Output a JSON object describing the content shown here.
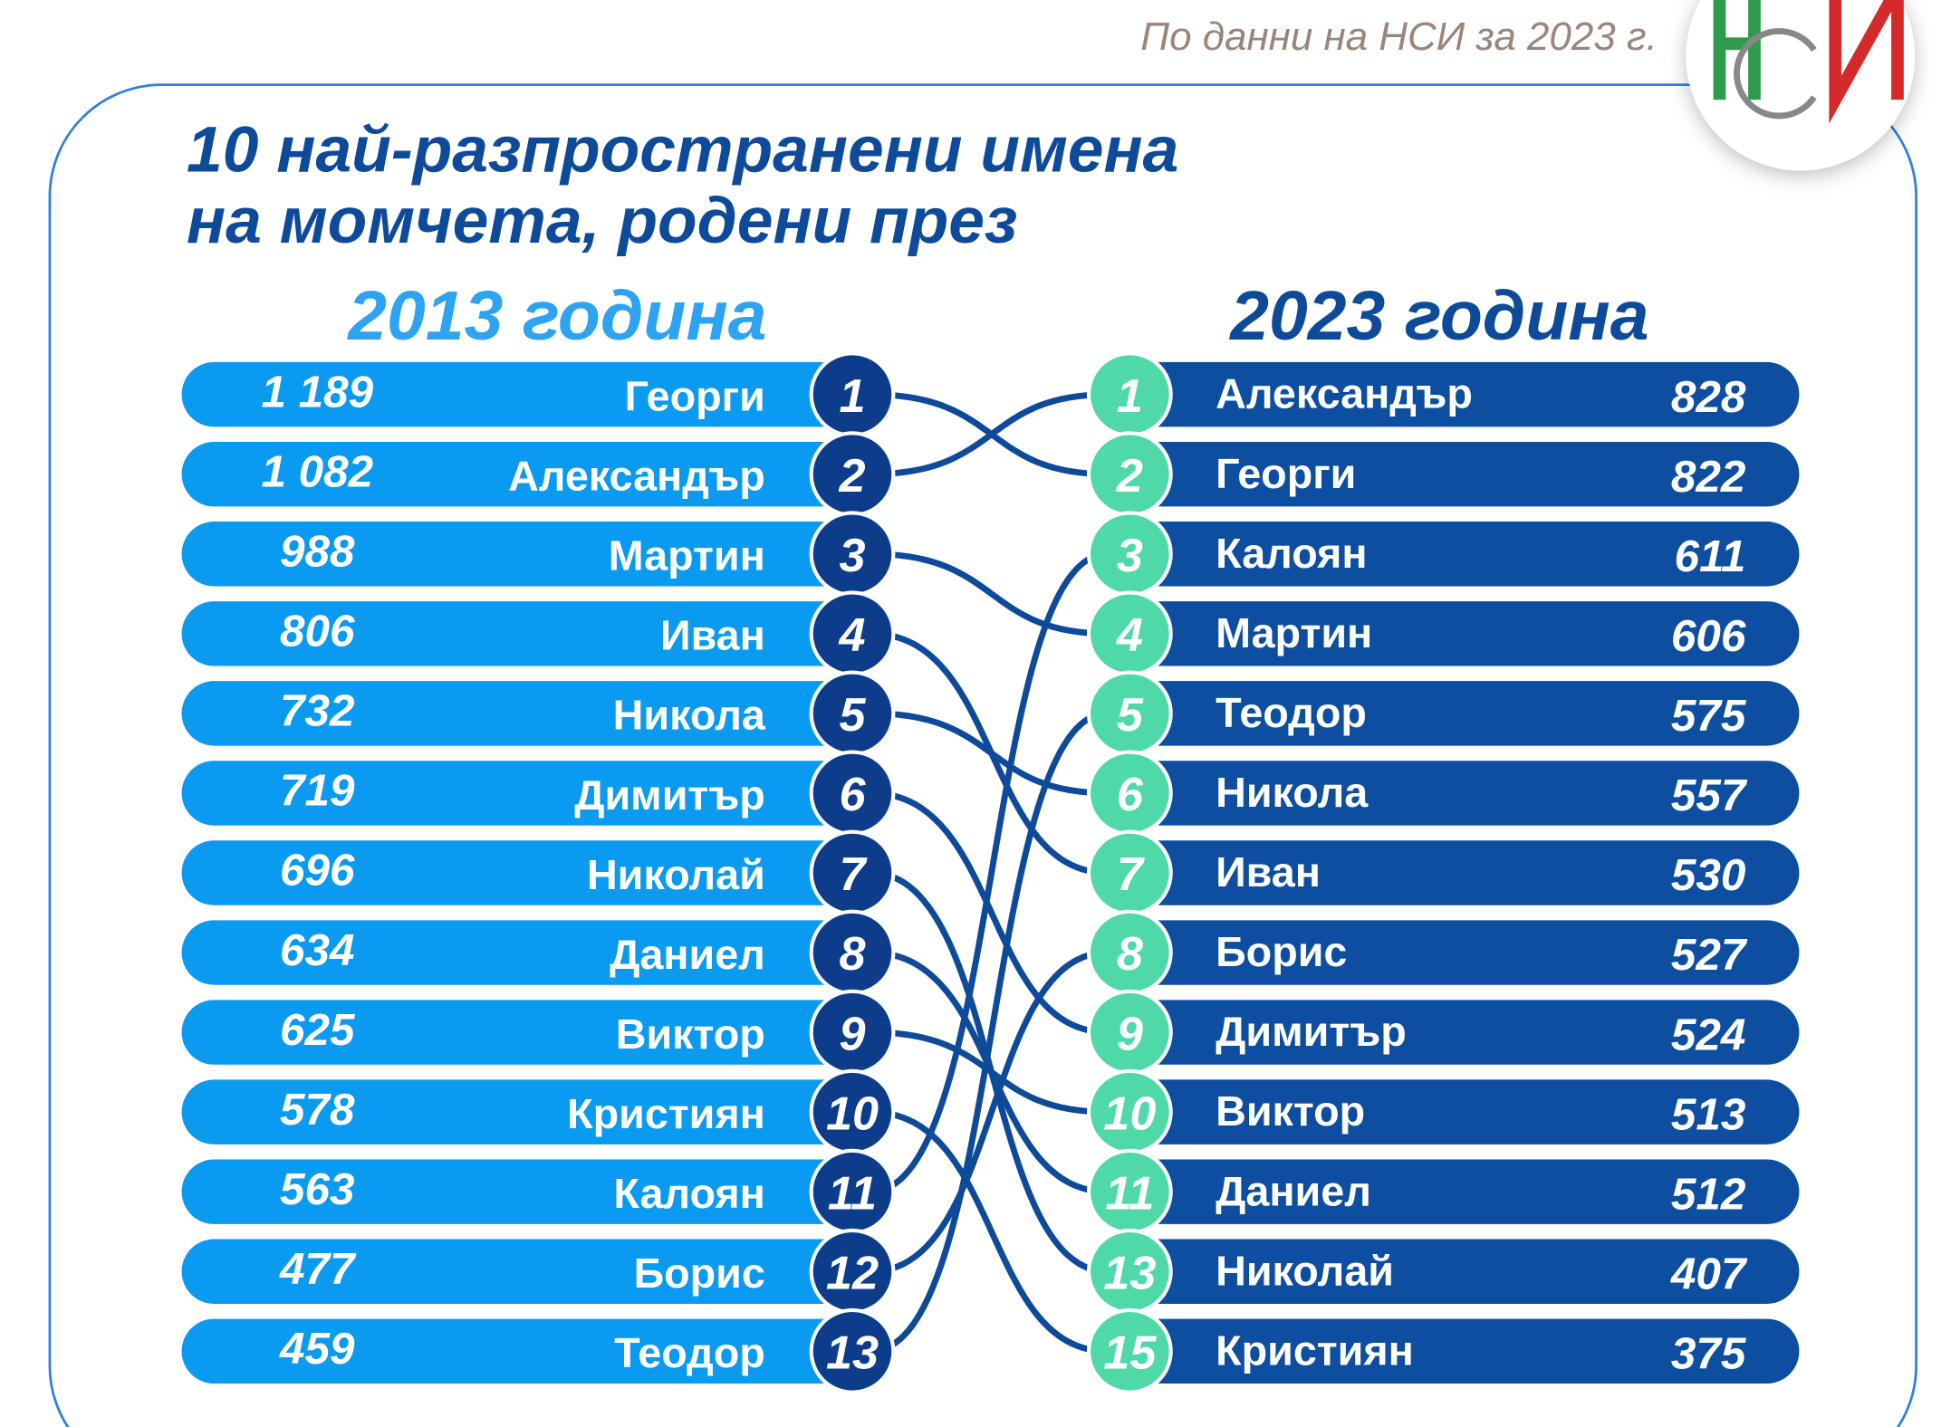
{
  "source": "По данни на НСИ за 2023 г.",
  "title": [
    "10 най-разпространени имена",
    "на момчета, родени през"
  ],
  "left": {
    "heading": "2013 година",
    "rows": [
      {
        "rank": 1,
        "name": "Георги",
        "count": "1 189"
      },
      {
        "rank": 2,
        "name": "Александър",
        "count": "1 082"
      },
      {
        "rank": 3,
        "name": "Мартин",
        "count": 988
      },
      {
        "rank": 4,
        "name": "Иван",
        "count": 806
      },
      {
        "rank": 5,
        "name": "Никола",
        "count": 732
      },
      {
        "rank": 6,
        "name": "Димитър",
        "count": 719
      },
      {
        "rank": 7,
        "name": "Николай",
        "count": 696
      },
      {
        "rank": 8,
        "name": "Даниел",
        "count": 634
      },
      {
        "rank": 9,
        "name": "Виктор",
        "count": 625
      },
      {
        "rank": 10,
        "name": "Кристиян",
        "count": 578
      },
      {
        "rank": 11,
        "name": "Калоян",
        "count": 563
      },
      {
        "rank": 12,
        "name": "Борис",
        "count": 477
      },
      {
        "rank": 13,
        "name": "Теодор",
        "count": 459
      }
    ]
  },
  "right": {
    "heading": "2023 година",
    "rows": [
      {
        "rank": 1,
        "name": "Александър",
        "count": 828
      },
      {
        "rank": 2,
        "name": "Георги",
        "count": 822
      },
      {
        "rank": 3,
        "name": "Калоян",
        "count": 611
      },
      {
        "rank": 4,
        "name": "Мартин",
        "count": 606
      },
      {
        "rank": 5,
        "name": "Теодор",
        "count": 575
      },
      {
        "rank": 6,
        "name": "Никола",
        "count": 557
      },
      {
        "rank": 7,
        "name": "Иван",
        "count": 530
      },
      {
        "rank": 8,
        "name": "Борис",
        "count": 527
      },
      {
        "rank": 9,
        "name": "Димитър",
        "count": 524
      },
      {
        "rank": 10,
        "name": "Виктор",
        "count": 513
      },
      {
        "rank": 11,
        "name": "Даниел",
        "count": 512
      },
      {
        "rank": 13,
        "name": "Николай",
        "count": 407
      },
      {
        "rank": 15,
        "name": "Кристиян",
        "count": 375
      }
    ]
  }
}
